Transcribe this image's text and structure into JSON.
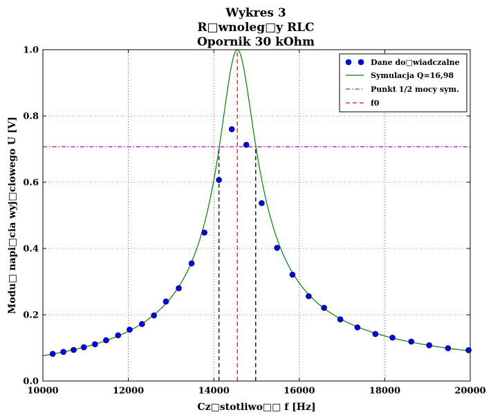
{
  "chart_data": {
    "type": "line",
    "title_lines": [
      "Wykres 3",
      "R□wnoleg□y RLC",
      "Opornik 30 kOhm"
    ],
    "xlabel": "Cz□stotliwo□□ f [Hz]",
    "ylabel": "Modu□ napi□cia wyj□ciowego U [V]",
    "xlim": [
      10000,
      20000
    ],
    "ylim": [
      0.0,
      1.0
    ],
    "xticks": [
      10000,
      12000,
      14000,
      16000,
      18000,
      20000
    ],
    "yticks": [
      0.0,
      0.2,
      0.4,
      0.6,
      0.8,
      1.0
    ],
    "xtick_labels": [
      "10000",
      "12000",
      "14000",
      "16000",
      "18000",
      "20000"
    ],
    "ytick_labels": [
      "0.0",
      "0.2",
      "0.4",
      "0.6",
      "0.8",
      "1.0"
    ],
    "grid": true,
    "legend_position": "top-right",
    "series": [
      {
        "name": "Dane do□wiadczalne",
        "kind": "scatter",
        "color": "#0000ff",
        "x": [
          10230,
          10480,
          10720,
          10960,
          11220,
          11480,
          11760,
          12030,
          12320,
          12600,
          12880,
          13180,
          13480,
          13780,
          14120,
          14420,
          14760,
          15120,
          15480,
          15840,
          16220,
          16580,
          16960,
          17360,
          17780,
          18180,
          18620,
          19040,
          19480,
          19960
        ],
        "y": [
          0.082,
          0.088,
          0.094,
          0.102,
          0.111,
          0.123,
          0.138,
          0.155,
          0.172,
          0.198,
          0.24,
          0.28,
          0.355,
          0.448,
          0.607,
          0.76,
          0.713,
          0.537,
          0.402,
          0.321,
          0.256,
          0.221,
          0.186,
          0.162,
          0.142,
          0.131,
          0.119,
          0.108,
          0.099,
          0.093
        ]
      },
      {
        "name": "Symulacja Q=16,98",
        "kind": "line",
        "color": "#008000",
        "f0": 14550,
        "Q": 16.98
      },
      {
        "name": "Punkt 1/2 mocy sym.",
        "kind": "hline",
        "color": "#bf00bf",
        "y": 0.707
      },
      {
        "name": "f0",
        "kind": "vline",
        "color": "#ff0000",
        "x": 14550
      }
    ],
    "half_power_lines": {
      "color": "#000000",
      "x": [
        14120,
        14980
      ],
      "y_top": 0.707
    }
  }
}
